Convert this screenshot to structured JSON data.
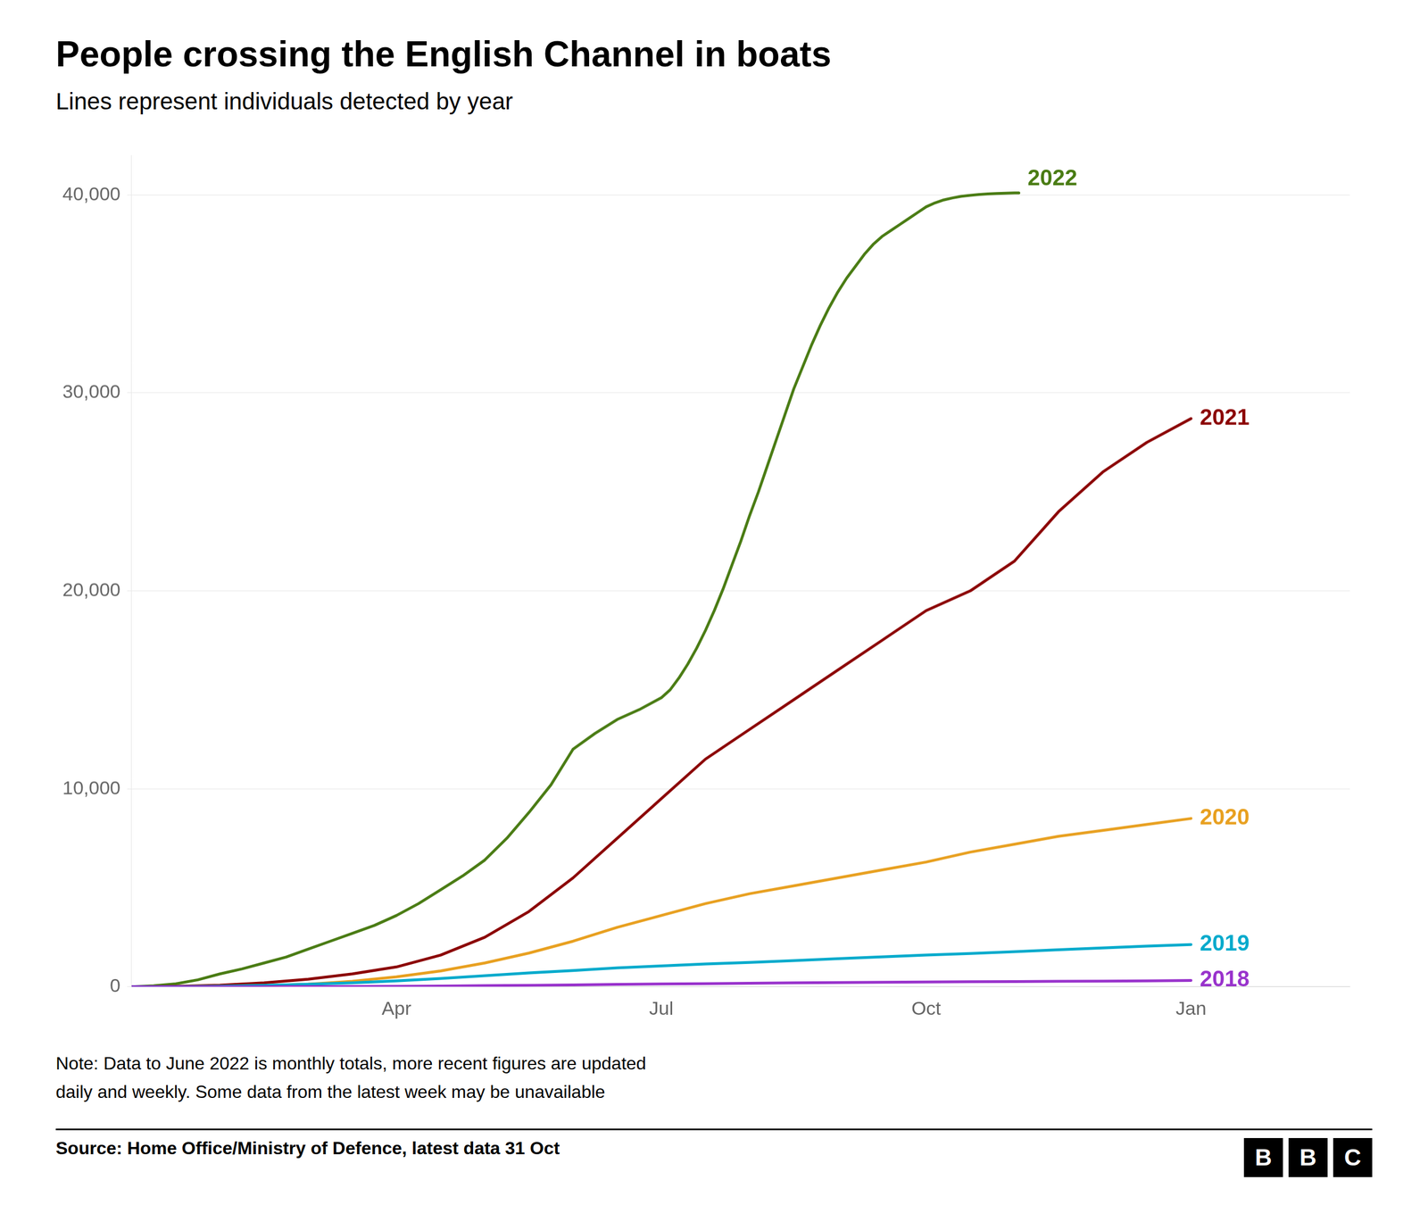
{
  "chart_data": {
    "type": "line",
    "title": "People crossing the English Channel in boats",
    "subtitle": "Lines represent individuals detected by year",
    "note": "Note: Data to June 2022 is monthly totals, more recent figures are updated\ndaily and weekly. Some data from the latest week may be unavailable",
    "source": "Source: Home Office/Ministry of Defence, latest data 31 Oct",
    "logo": [
      "B",
      "B",
      "C"
    ],
    "xlim": [
      0,
      13.8
    ],
    "xticks": [
      {
        "value": 3,
        "label": "Apr"
      },
      {
        "value": 6,
        "label": "Jul"
      },
      {
        "value": 9,
        "label": "Oct"
      },
      {
        "value": 12,
        "label": "Jan"
      }
    ],
    "ylim": [
      0,
      42000
    ],
    "yticks": [
      0,
      {
        "value": 10000,
        "label": "10,000"
      },
      {
        "value": 20000,
        "label": "20,000"
      },
      {
        "value": 30000,
        "label": "30,000"
      },
      {
        "value": 40000,
        "label": "40,000"
      }
    ],
    "grid": "y",
    "legend": false,
    "series": [
      {
        "name": "2018",
        "color": "#9933cc",
        "x": [
          0,
          0.5,
          1,
          1.5,
          2,
          2.5,
          3,
          3.5,
          4,
          4.5,
          5,
          5.5,
          6,
          6.5,
          7,
          7.5,
          8,
          8.5,
          9,
          9.5,
          10,
          10.5,
          11,
          11.5,
          12
        ],
        "values": [
          0,
          0,
          2,
          4,
          8,
          15,
          25,
          40,
          55,
          75,
          95,
          120,
          140,
          160,
          180,
          200,
          215,
          225,
          240,
          255,
          265,
          275,
          285,
          300,
          320
        ]
      },
      {
        "name": "2019",
        "color": "#00aacc",
        "x": [
          0,
          0.5,
          1,
          1.5,
          2,
          2.5,
          3,
          3.5,
          4,
          4.5,
          5,
          5.5,
          6,
          6.5,
          7,
          7.5,
          8,
          8.5,
          9,
          9.5,
          10,
          10.5,
          11,
          11.5,
          12
        ],
        "values": [
          0,
          10,
          30,
          70,
          130,
          200,
          300,
          420,
          560,
          700,
          820,
          950,
          1050,
          1150,
          1230,
          1320,
          1420,
          1510,
          1600,
          1680,
          1770,
          1870,
          1960,
          2050,
          2130
        ]
      },
      {
        "name": "2020",
        "color": "#e8a020",
        "x": [
          0,
          0.5,
          1,
          1.5,
          2,
          2.5,
          3,
          3.5,
          4,
          4.5,
          5,
          5.5,
          6,
          6.5,
          7,
          7.5,
          8,
          8.5,
          9,
          9.5,
          10,
          10.5,
          11,
          11.5,
          12
        ],
        "values": [
          0,
          5,
          15,
          50,
          130,
          280,
          500,
          800,
          1200,
          1700,
          2300,
          3000,
          3600,
          4200,
          4700,
          5100,
          5500,
          5900,
          6300,
          6800,
          7200,
          7600,
          7900,
          8200,
          8500
        ]
      },
      {
        "name": "2021",
        "color": "#8b0000",
        "x": [
          0,
          0.5,
          1,
          1.5,
          2,
          2.5,
          3,
          3.5,
          4,
          4.5,
          5,
          5.5,
          6,
          6.5,
          7,
          7.5,
          8,
          8.5,
          9,
          9.5,
          10,
          10.5,
          11,
          11.5,
          12
        ],
        "values": [
          0,
          20,
          80,
          200,
          380,
          650,
          1000,
          1600,
          2500,
          3800,
          5500,
          7500,
          9500,
          11500,
          13000,
          14500,
          16000,
          17500,
          19000,
          20000,
          21500,
          24000,
          26000,
          27500,
          28700
        ]
      },
      {
        "name": "2022",
        "color": "#4a7c14",
        "x": [
          0,
          0.25,
          0.5,
          0.75,
          1,
          1.25,
          1.5,
          1.75,
          2,
          2.25,
          2.5,
          2.75,
          3,
          3.25,
          3.5,
          3.75,
          4,
          4.25,
          4.5,
          4.75,
          5,
          5.25,
          5.5,
          5.75,
          6,
          6.1,
          6.2,
          6.3,
          6.4,
          6.5,
          6.6,
          6.7,
          6.8,
          6.9,
          7,
          7.1,
          7.2,
          7.3,
          7.4,
          7.5,
          7.6,
          7.7,
          7.8,
          7.9,
          8,
          8.1,
          8.2,
          8.3,
          8.4,
          8.5,
          8.6,
          8.7,
          8.8,
          8.9,
          9,
          9.1,
          9.2,
          9.3,
          9.4,
          9.5,
          9.6,
          9.7,
          9.8,
          9.9,
          10,
          10.05
        ],
        "values": [
          0,
          50,
          150,
          350,
          650,
          900,
          1200,
          1500,
          1900,
          2300,
          2700,
          3100,
          3600,
          4200,
          4900,
          5600,
          6400,
          7500,
          8800,
          10200,
          12000,
          12800,
          13500,
          14000,
          14600,
          15000,
          15600,
          16300,
          17100,
          18000,
          19000,
          20100,
          21300,
          22500,
          23800,
          25000,
          26300,
          27600,
          28900,
          30200,
          31300,
          32400,
          33400,
          34300,
          35100,
          35800,
          36400,
          37000,
          37500,
          37900,
          38200,
          38500,
          38800,
          39100,
          39400,
          39600,
          39750,
          39850,
          39930,
          39980,
          40020,
          40050,
          40070,
          40085,
          40100,
          40100
        ]
      }
    ],
    "annotations": [
      {
        "text": "2022",
        "x": 10.15,
        "y": 40800,
        "color": "#4a7c14"
      },
      {
        "text": "2021",
        "x": 12.1,
        "y": 28700,
        "color": "#8b0000"
      },
      {
        "text": "2020",
        "x": 12.1,
        "y": 8500,
        "color": "#e8a020"
      },
      {
        "text": "2019",
        "x": 12.1,
        "y": 2130,
        "color": "#00aacc"
      },
      {
        "text": "2018",
        "x": 12.1,
        "y": 320,
        "color": "#9933cc"
      }
    ]
  }
}
